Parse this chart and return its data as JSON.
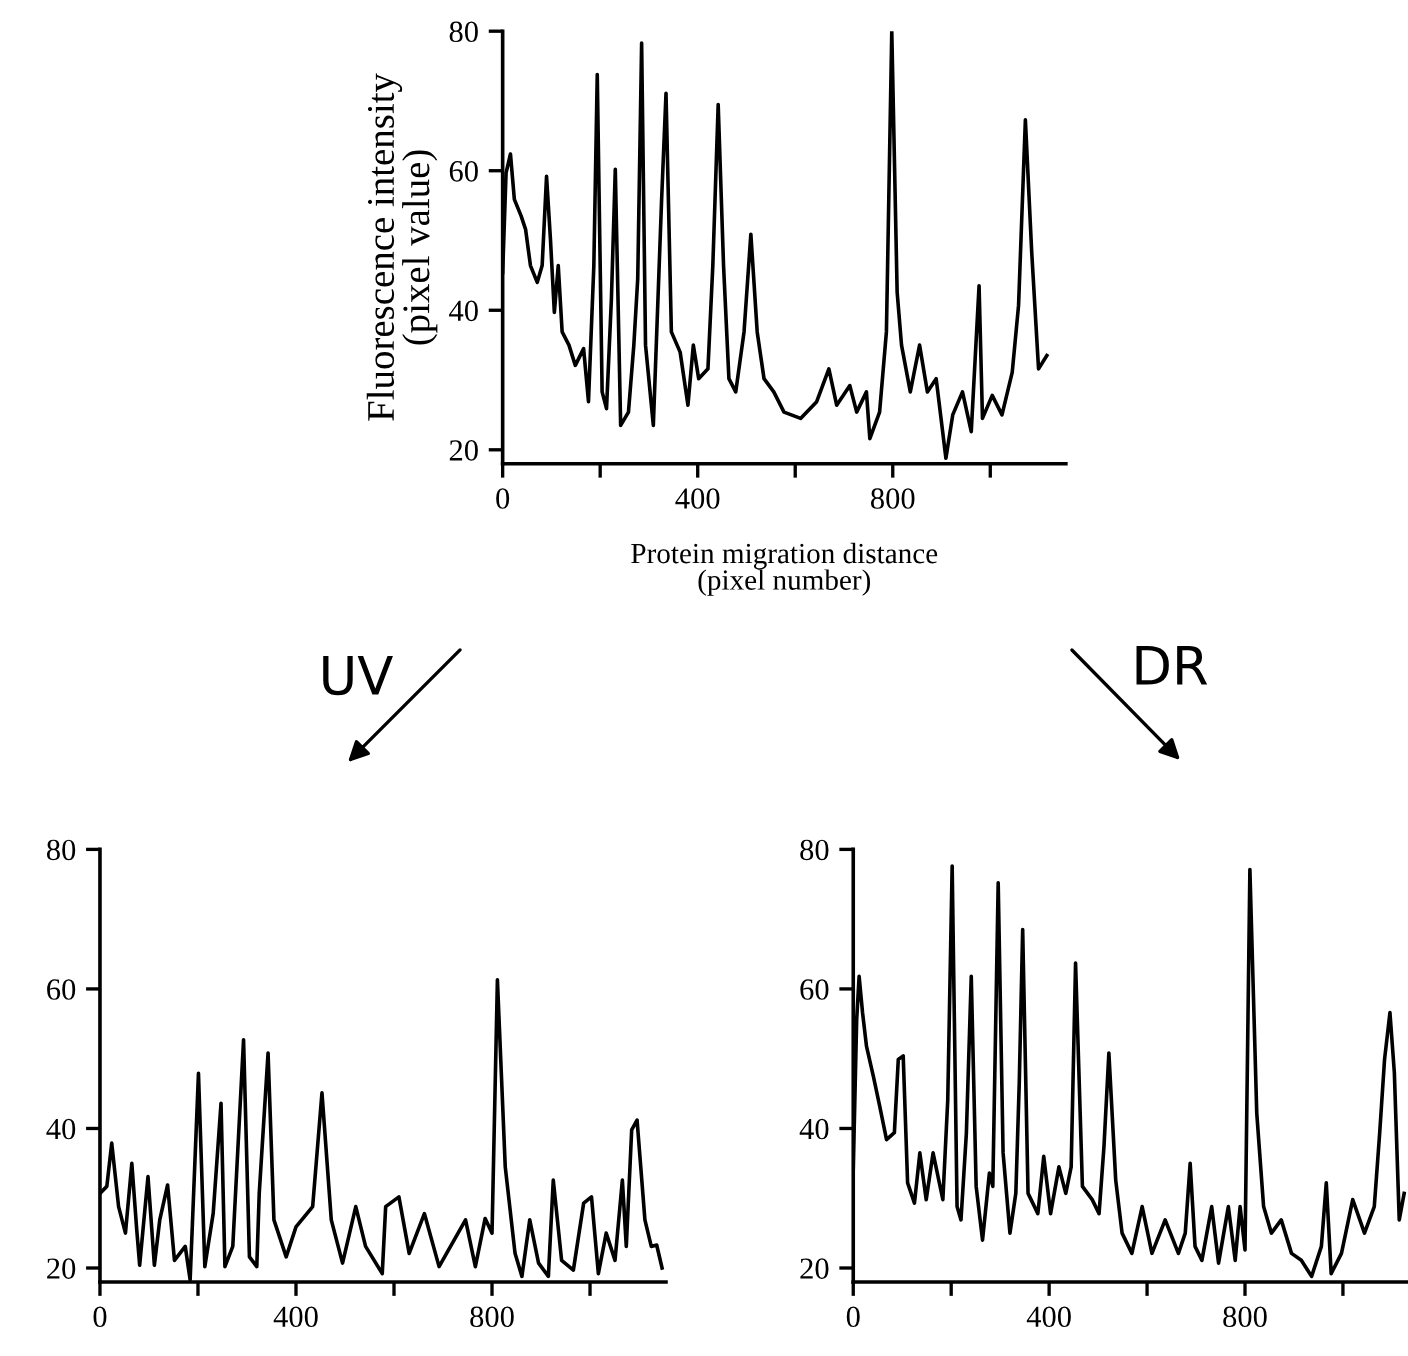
{
  "chart_data": [
    {
      "type": "line",
      "ylabel": "Fluorescence intensity\n(pixel value)",
      "xlabel": "Protein migration distance\n(pixel number)",
      "xlim": [
        0,
        1155
      ],
      "ylim": [
        18,
        80
      ],
      "xticks": [
        0,
        {
          "value": 200,
          "label": null
        },
        400,
        {
          "value": 600,
          "label": null
        },
        800,
        {
          "value": 1000,
          "label": null
        }
      ],
      "yticks": [
        20,
        40,
        60,
        80
      ],
      "grid": false,
      "marker": "none",
      "line_style": "solid",
      "series": [
        {
          "color": "#000000",
          "x": [
            0,
            7,
            16,
            24,
            38,
            47,
            57,
            71,
            81,
            90,
            98,
            106,
            114,
            122,
            136,
            149,
            166,
            176,
            187,
            194,
            204,
            213,
            223,
            231,
            242,
            258,
            269,
            277,
            285,
            293,
            309,
            326,
            335,
            346,
            364,
            380,
            391,
            402,
            421,
            431,
            442,
            453,
            464,
            478,
            495,
            509,
            522,
            536,
            556,
            577,
            611,
            644,
            669,
            685,
            712,
            726,
            746,
            753,
            773,
            787,
            798,
            809,
            818,
            836,
            855,
            871,
            889,
            909,
            923,
            943,
            961,
            977,
            984,
            1004,
            1024,
            1045,
            1058,
            1072,
            1085,
            1099,
            1116
          ],
          "values": [
            45.4,
            59.7,
            62.4,
            55.9,
            53.5,
            51.6,
            46.4,
            44,
            46.4,
            59.2,
            50.2,
            39.7,
            46.4,
            36.9,
            35,
            32.1,
            34.5,
            26.9,
            46.4,
            73.8,
            28.3,
            25.9,
            41.6,
            60.2,
            23.5,
            25.4,
            35,
            44.5,
            78.3,
            35,
            23.5,
            55.9,
            71.1,
            36.9,
            34,
            26.4,
            35,
            30.2,
            31.6,
            46.4,
            69.5,
            46.4,
            30.2,
            28.3,
            36.9,
            50.9,
            36.9,
            30.2,
            28.3,
            25.4,
            24.5,
            26.9,
            31.6,
            26.4,
            29.2,
            25.4,
            28.3,
            21.6,
            25.4,
            36.9,
            80,
            42.6,
            35,
            28.3,
            35,
            28.3,
            30.2,
            18.8,
            25,
            28.3,
            22.6,
            43.5,
            24.5,
            27.8,
            25,
            31.1,
            40.7,
            67.3,
            48.3,
            31.6,
            33.5
          ]
        }
      ]
    },
    {
      "type": "line",
      "annotations": [
        "UV"
      ],
      "xlim": [
        0,
        1155
      ],
      "ylim": [
        18,
        80
      ],
      "xticks": [
        0,
        {
          "value": 200,
          "label": null
        },
        400,
        {
          "value": 600,
          "label": null
        },
        800,
        {
          "value": 1000,
          "label": null
        }
      ],
      "yticks": [
        20,
        40,
        60,
        80
      ],
      "grid": false,
      "marker": "none",
      "line_style": "solid",
      "series": [
        {
          "color": "#000000",
          "x": [
            0,
            14,
            24,
            38,
            52,
            65,
            75,
            81,
            98,
            111,
            122,
            138,
            152,
            174,
            184,
            201,
            214,
            231,
            247,
            255,
            271,
            293,
            305,
            320,
            325,
            343,
            355,
            380,
            400,
            434,
            453,
            472,
            495,
            522,
            542,
            576,
            583,
            610,
            631,
            662,
            692,
            746,
            766,
            786,
            800,
            811,
            827,
            847,
            861,
            877,
            895,
            915,
            925,
            942,
            966,
            987,
            1003,
            1017,
            1033,
            1051,
            1066,
            1074,
            1085,
            1096,
            1112,
            1125,
            1136,
            1147
          ],
          "values": [
            30.7,
            31.7,
            37.9,
            28.8,
            25,
            35,
            25.5,
            20.4,
            33.1,
            20.4,
            26.9,
            31.9,
            21.1,
            23.1,
            18.3,
            47.9,
            20.2,
            27.8,
            43.6,
            20.2,
            23.1,
            52.7,
            21.6,
            20.2,
            30.7,
            50.8,
            26.9,
            21.6,
            25.9,
            28.8,
            45.1,
            26.9,
            20.7,
            28.8,
            23.1,
            19.2,
            28.8,
            30.2,
            22.1,
            27.8,
            20.2,
            26.9,
            20.2,
            27.1,
            25,
            61.3,
            34.5,
            22.1,
            18.8,
            26.9,
            20.7,
            18.8,
            32.6,
            21.1,
            19.7,
            29.3,
            30.2,
            19.2,
            25,
            21.1,
            32.6,
            23.1,
            39.8,
            41.2,
            26.9,
            23.1,
            23.3,
            20
          ]
        }
      ]
    },
    {
      "type": "line",
      "annotations": [
        "DR"
      ],
      "xlim": [
        0,
        1130
      ],
      "ylim": [
        18,
        80
      ],
      "xticks": [
        0,
        {
          "value": 200,
          "label": null
        },
        400,
        {
          "value": 600,
          "label": null
        },
        800,
        {
          "value": 1000,
          "label": null
        }
      ],
      "yticks": [
        20,
        40,
        60,
        80
      ],
      "grid": false,
      "marker": "none",
      "line_style": "solid",
      "series": [
        {
          "color": "#000000",
          "x": [
            0,
            7,
            12,
            19,
            27,
            41,
            54,
            68,
            84,
            92,
            102,
            111,
            125,
            136,
            149,
            163,
            183,
            193,
            202,
            212,
            220,
            231,
            241,
            251,
            264,
            278,
            285,
            296,
            306,
            320,
            332,
            339,
            346,
            357,
            377,
            389,
            403,
            420,
            434,
            445,
            454,
            468,
            488,
            502,
            512,
            522,
            536,
            549,
            569,
            590,
            610,
            637,
            664,
            678,
            688,
            698,
            712,
            732,
            746,
            766,
            780,
            790,
            800,
            810,
            824,
            838,
            854,
            874,
            895,
            915,
            936,
            956,
            966,
            976,
            997,
            1020,
            1044,
            1064,
            1075,
            1085,
            1096,
            1105,
            1115,
            1125
          ],
          "values": [
            34.1,
            55.6,
            61.8,
            56.6,
            51.8,
            47.5,
            43.2,
            38.4,
            39.4,
            49.9,
            50.4,
            32.2,
            29.3,
            36.5,
            29.8,
            36.5,
            29.8,
            44.1,
            77.6,
            28.8,
            26.9,
            39.3,
            61.8,
            31.7,
            24,
            33.6,
            31.7,
            75.2,
            36.5,
            25,
            30.7,
            46.5,
            68.5,
            30.7,
            27.8,
            36,
            27.8,
            34.5,
            30.7,
            34.5,
            63.7,
            31.7,
            29.8,
            27.8,
            37.4,
            50.8,
            32.6,
            25,
            22.1,
            28.8,
            22.1,
            26.9,
            22.1,
            25,
            35,
            23.1,
            21.1,
            28.8,
            20.7,
            28.8,
            21.1,
            28.8,
            22.6,
            77.1,
            42.2,
            28.8,
            25,
            26.9,
            22.1,
            21.1,
            18.8,
            23.1,
            32.2,
            19.2,
            22.1,
            29.8,
            25,
            28.8,
            39.3,
            49.9,
            56.6,
            48,
            26.9,
            30.7
          ]
        }
      ]
    }
  ]
}
